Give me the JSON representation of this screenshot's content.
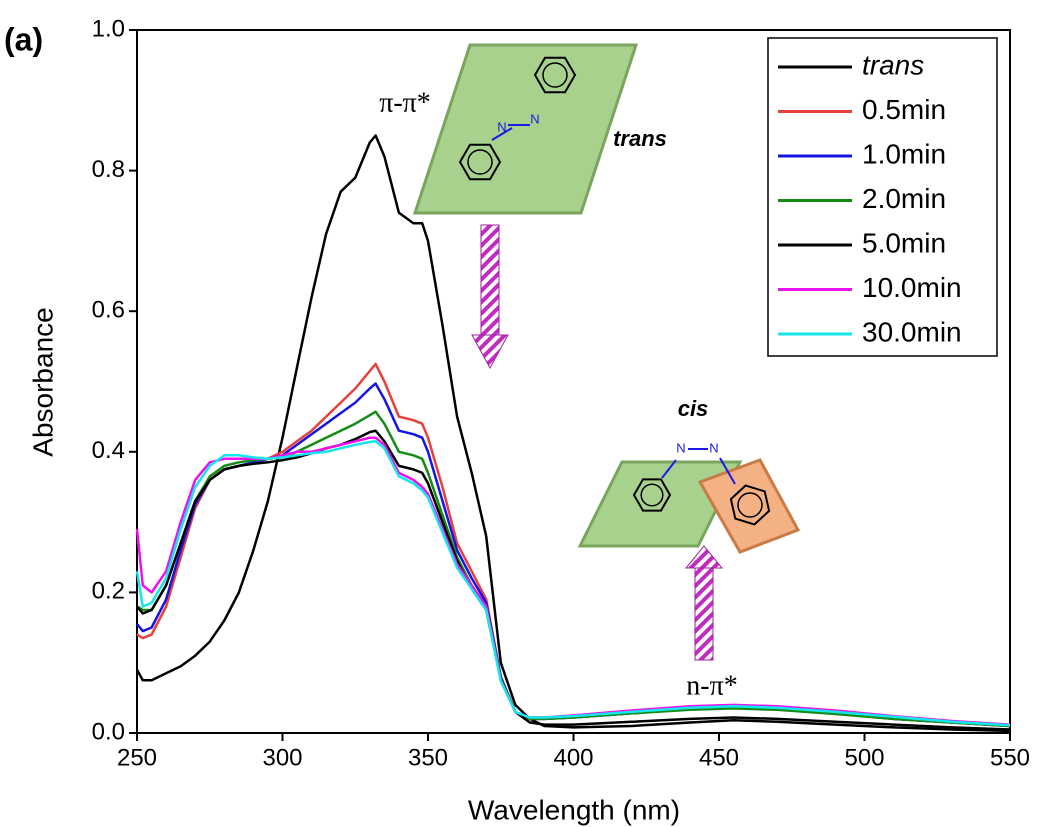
{
  "chart_data": {
    "type": "line",
    "xlabel": "Wavelength (nm)",
    "ylabel": "Absorbance",
    "annotations": [
      "(a)",
      "π-π*",
      "n-π*",
      "trans",
      "cis",
      "N",
      "N",
      "N",
      "N"
    ],
    "x": [
      250,
      252,
      255,
      260,
      265,
      270,
      275,
      280,
      285,
      290,
      295,
      300,
      305,
      310,
      315,
      320,
      325,
      330,
      332,
      335,
      340,
      345,
      348,
      350,
      355,
      360,
      365,
      370,
      375,
      380,
      385,
      390,
      400,
      420,
      440,
      455,
      470,
      490,
      510,
      530,
      550
    ],
    "series": [
      {
        "name": "trans",
        "color": "#000000",
        "values": [
          0.09,
          0.075,
          0.075,
          0.085,
          0.095,
          0.11,
          0.13,
          0.16,
          0.2,
          0.26,
          0.33,
          0.42,
          0.52,
          0.62,
          0.71,
          0.77,
          0.79,
          0.84,
          0.85,
          0.82,
          0.74,
          0.725,
          0.725,
          0.7,
          0.58,
          0.45,
          0.37,
          0.28,
          0.1,
          0.04,
          0.02,
          0.01,
          0.008,
          0.01,
          0.015,
          0.018,
          0.016,
          0.012,
          0.008,
          0.005,
          0.003
        ]
      },
      {
        "name": "0.5min",
        "color": "#e8403c",
        "values": [
          0.14,
          0.135,
          0.14,
          0.18,
          0.25,
          0.32,
          0.36,
          0.375,
          0.38,
          0.385,
          0.39,
          0.4,
          0.415,
          0.43,
          0.45,
          0.47,
          0.49,
          0.515,
          0.525,
          0.5,
          0.45,
          0.445,
          0.44,
          0.42,
          0.35,
          0.27,
          0.23,
          0.19,
          0.08,
          0.03,
          0.02,
          0.02,
          0.022,
          0.028,
          0.034,
          0.036,
          0.034,
          0.028,
          0.02,
          0.015,
          0.01
        ]
      },
      {
        "name": "1.0min",
        "color": "#1414e6",
        "values": [
          0.155,
          0.145,
          0.15,
          0.19,
          0.26,
          0.325,
          0.36,
          0.375,
          0.38,
          0.385,
          0.39,
          0.395,
          0.41,
          0.425,
          0.44,
          0.455,
          0.47,
          0.49,
          0.497,
          0.475,
          0.43,
          0.425,
          0.42,
          0.4,
          0.33,
          0.26,
          0.22,
          0.185,
          0.08,
          0.03,
          0.02,
          0.02,
          0.022,
          0.028,
          0.034,
          0.036,
          0.034,
          0.028,
          0.02,
          0.015,
          0.01
        ]
      },
      {
        "name": "2.0min",
        "color": "#148c14",
        "values": [
          0.18,
          0.175,
          0.175,
          0.21,
          0.27,
          0.33,
          0.365,
          0.38,
          0.385,
          0.388,
          0.39,
          0.392,
          0.4,
          0.41,
          0.42,
          0.43,
          0.44,
          0.452,
          0.457,
          0.44,
          0.4,
          0.395,
          0.39,
          0.37,
          0.31,
          0.25,
          0.21,
          0.18,
          0.078,
          0.03,
          0.02,
          0.02,
          0.022,
          0.028,
          0.033,
          0.035,
          0.033,
          0.027,
          0.02,
          0.015,
          0.01
        ]
      },
      {
        "name": "5.0min",
        "color": "#000000",
        "values": [
          0.18,
          0.17,
          0.175,
          0.21,
          0.27,
          0.33,
          0.36,
          0.375,
          0.38,
          0.383,
          0.385,
          0.388,
          0.392,
          0.398,
          0.405,
          0.41,
          0.418,
          0.428,
          0.43,
          0.415,
          0.38,
          0.375,
          0.37,
          0.355,
          0.3,
          0.245,
          0.205,
          0.175,
          0.076,
          0.03,
          0.015,
          0.012,
          0.012,
          0.016,
          0.02,
          0.022,
          0.02,
          0.016,
          0.012,
          0.008,
          0.005
        ]
      },
      {
        "name": "10.0min",
        "color": "#ee10ee",
        "values": [
          0.29,
          0.21,
          0.2,
          0.23,
          0.3,
          0.36,
          0.385,
          0.39,
          0.39,
          0.39,
          0.39,
          0.395,
          0.4,
          0.4,
          0.405,
          0.41,
          0.415,
          0.42,
          0.42,
          0.41,
          0.37,
          0.36,
          0.35,
          0.34,
          0.29,
          0.24,
          0.21,
          0.18,
          0.075,
          0.03,
          0.022,
          0.022,
          0.025,
          0.032,
          0.038,
          0.04,
          0.038,
          0.032,
          0.024,
          0.017,
          0.012
        ]
      },
      {
        "name": "30.0min",
        "color": "#14e6ee",
        "values": [
          0.23,
          0.18,
          0.185,
          0.22,
          0.29,
          0.35,
          0.38,
          0.395,
          0.395,
          0.392,
          0.39,
          0.392,
          0.395,
          0.398,
          0.4,
          0.405,
          0.41,
          0.414,
          0.415,
          0.405,
          0.365,
          0.355,
          0.345,
          0.335,
          0.285,
          0.235,
          0.205,
          0.175,
          0.074,
          0.03,
          0.022,
          0.022,
          0.024,
          0.03,
          0.036,
          0.038,
          0.036,
          0.03,
          0.023,
          0.016,
          0.011
        ]
      }
    ],
    "xlim": [
      250,
      550
    ],
    "ylim": [
      0,
      1
    ],
    "xticks": [
      250,
      300,
      350,
      400,
      450,
      500,
      550
    ],
    "yticks": [
      {
        "value": 0,
        "label": "0.0"
      },
      0.2,
      0.4,
      0.6,
      0.8,
      {
        "value": 1,
        "label": "1.0"
      }
    ],
    "legend": "upper-right"
  }
}
